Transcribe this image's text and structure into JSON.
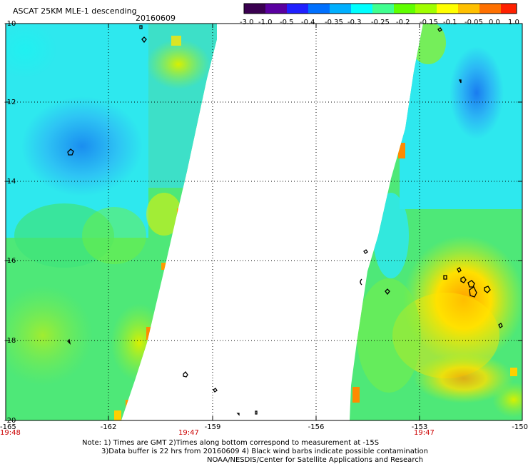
{
  "header": {
    "product_title": "ASCAT 25KM MLE-1 descending",
    "date": "20160609"
  },
  "colorbar": {
    "tick_labels": [
      "-3.0",
      "-1.0",
      "-0.5",
      "-0.4",
      "-0.35",
      "-0.3",
      "-0.25",
      "-0.2",
      "-0.15",
      "-0.1",
      "-0.05",
      "0.0",
      "1.0"
    ],
    "colors": [
      "#3a0050",
      "#5a00a0",
      "#2020ff",
      "#0070ff",
      "#00b0ff",
      "#00ffff",
      "#40ff90",
      "#60ff00",
      "#a0ff00",
      "#ffff00",
      "#ffc000",
      "#ff7000",
      "#ff2000"
    ]
  },
  "map": {
    "y_labels": [
      "-10",
      "-12",
      "-14",
      "-16",
      "-18",
      "-20"
    ],
    "x_labels": [
      "-165",
      "-162",
      "-159",
      "-156",
      "-153",
      "-150"
    ],
    "time_labels": [
      "19:48",
      "19:47",
      "19:47"
    ],
    "palette": {
      "cyan": "#22eef2",
      "light_blue": "#2ed0f5",
      "blue": "#1aa0f0",
      "green": "#55f064",
      "yellow_green": "#a8f020",
      "yellow": "#ffee00",
      "orange": "#ff9900",
      "white": "#ffffff",
      "grid": "#000000"
    }
  },
  "notes": {
    "line1": "Note: 1) Times are GMT 2)Times along bottom correspond to measurement at -15S",
    "line2": "3)Data buffer is 22 hrs from 20160609 4) Black wind barbs indicate possible contamination",
    "line3": "NOAA/NESDIS/Center for Satellite Applications and Research"
  }
}
